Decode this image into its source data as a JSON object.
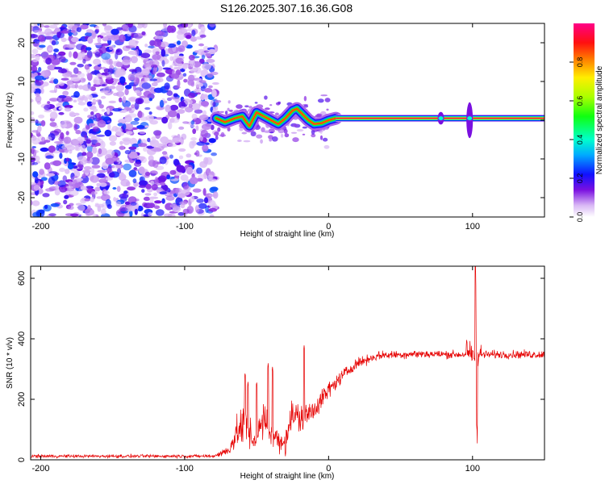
{
  "figure": {
    "title": "S126.2025.307.16.36.G08"
  },
  "chart_data": [
    {
      "type": "heatmap",
      "title": "S126.2025.307.16.36.G08",
      "xlabel": "Height of straight line (km)",
      "ylabel": "Frequency (Hz)",
      "xlim": [
        -207,
        150
      ],
      "ylim": [
        -25,
        25
      ],
      "xticks": [
        -200,
        -100,
        0,
        100
      ],
      "yticks": [
        -20,
        -10,
        0,
        10,
        20
      ],
      "colorbar": {
        "label": "Normalized spectral amplitude",
        "range": [
          0,
          1
        ],
        "ticks": [
          0.0,
          0.2,
          0.4,
          0.6,
          0.8
        ],
        "tick_labels": [
          "0.0",
          "0.2",
          "0.4",
          "0.6",
          "0.8"
        ]
      },
      "regions": [
        {
          "name": "noise",
          "x_range": [
            -207,
            -78
          ],
          "freq_range": [
            -25,
            25
          ],
          "amplitude": 0.15
        },
        {
          "name": "transition",
          "x_range": [
            -78,
            5
          ],
          "freq_center": 0,
          "amplitude": 0.4
        },
        {
          "name": "stable_line",
          "x_range": [
            5,
            150
          ],
          "freq": 0.5,
          "amplitude": 0.95
        }
      ],
      "ridge_points": [
        {
          "x": -78,
          "f": 0.5
        },
        {
          "x": -72,
          "f": -0.5
        },
        {
          "x": -65,
          "f": 0.5
        },
        {
          "x": -60,
          "f": 1
        },
        {
          "x": -55,
          "f": -1.5
        },
        {
          "x": -50,
          "f": 2
        },
        {
          "x": -45,
          "f": 1
        },
        {
          "x": -40,
          "f": 0
        },
        {
          "x": -35,
          "f": -1
        },
        {
          "x": -30,
          "f": 0.5
        },
        {
          "x": -25,
          "f": 2.5
        },
        {
          "x": -22,
          "f": 3
        },
        {
          "x": -18,
          "f": 1.5
        },
        {
          "x": -14,
          "f": 0
        },
        {
          "x": -10,
          "f": -1
        },
        {
          "x": -5,
          "f": -0.8
        },
        {
          "x": 0,
          "f": 0
        },
        {
          "x": 5,
          "f": 0.5
        }
      ],
      "spikes": [
        {
          "x": 78,
          "freq_range": [
            -0.5,
            1.5
          ]
        },
        {
          "x": 98,
          "freq_range": [
            -4,
            4
          ]
        }
      ]
    },
    {
      "type": "line",
      "xlabel": "Height of straight line (km)",
      "ylabel": "SNR (10 * v/v)",
      "xlim": [
        -207,
        150
      ],
      "ylim": [
        0,
        640
      ],
      "xticks": [
        -200,
        -100,
        0,
        100
      ],
      "yticks": [
        0,
        200,
        400,
        600
      ],
      "series": [
        {
          "name": "SNR",
          "color": "#e60000",
          "envelope": [
            {
              "x": -207,
              "mean": 12,
              "amp": 8
            },
            {
              "x": -80,
              "mean": 12,
              "amp": 8
            },
            {
              "x": -70,
              "mean": 30,
              "amp": 25
            },
            {
              "x": -62,
              "mean": 100,
              "amp": 90
            },
            {
              "x": -58,
              "mean": 120,
              "amp": 100
            },
            {
              "x": -52,
              "mean": 60,
              "amp": 50
            },
            {
              "x": -45,
              "mean": 130,
              "amp": 90
            },
            {
              "x": -38,
              "mean": 80,
              "amp": 60
            },
            {
              "x": -32,
              "mean": 50,
              "amp": 40
            },
            {
              "x": -25,
              "mean": 150,
              "amp": 90
            },
            {
              "x": -18,
              "mean": 130,
              "amp": 70
            },
            {
              "x": -10,
              "mean": 170,
              "amp": 60
            },
            {
              "x": 0,
              "mean": 230,
              "amp": 40
            },
            {
              "x": 10,
              "mean": 280,
              "amp": 30
            },
            {
              "x": 20,
              "mean": 320,
              "amp": 25
            },
            {
              "x": 35,
              "mean": 345,
              "amp": 20
            },
            {
              "x": 60,
              "mean": 350,
              "amp": 20
            },
            {
              "x": 90,
              "mean": 348,
              "amp": 20
            },
            {
              "x": 150,
              "mean": 348,
              "amp": 20
            }
          ],
          "peaks": [
            {
              "x": -58,
              "y": 290
            },
            {
              "x": -56,
              "y": 260
            },
            {
              "x": -50,
              "y": 260
            },
            {
              "x": -42,
              "y": 320
            },
            {
              "x": -39,
              "y": 310
            },
            {
              "x": -17,
              "y": 380
            },
            {
              "x": 96,
              "y": 400
            },
            {
              "x": 102,
              "y": 640
            }
          ],
          "troughs": [
            {
              "x": 103,
              "y": 80
            },
            {
              "x": -30,
              "y": 10
            }
          ]
        }
      ]
    }
  ]
}
